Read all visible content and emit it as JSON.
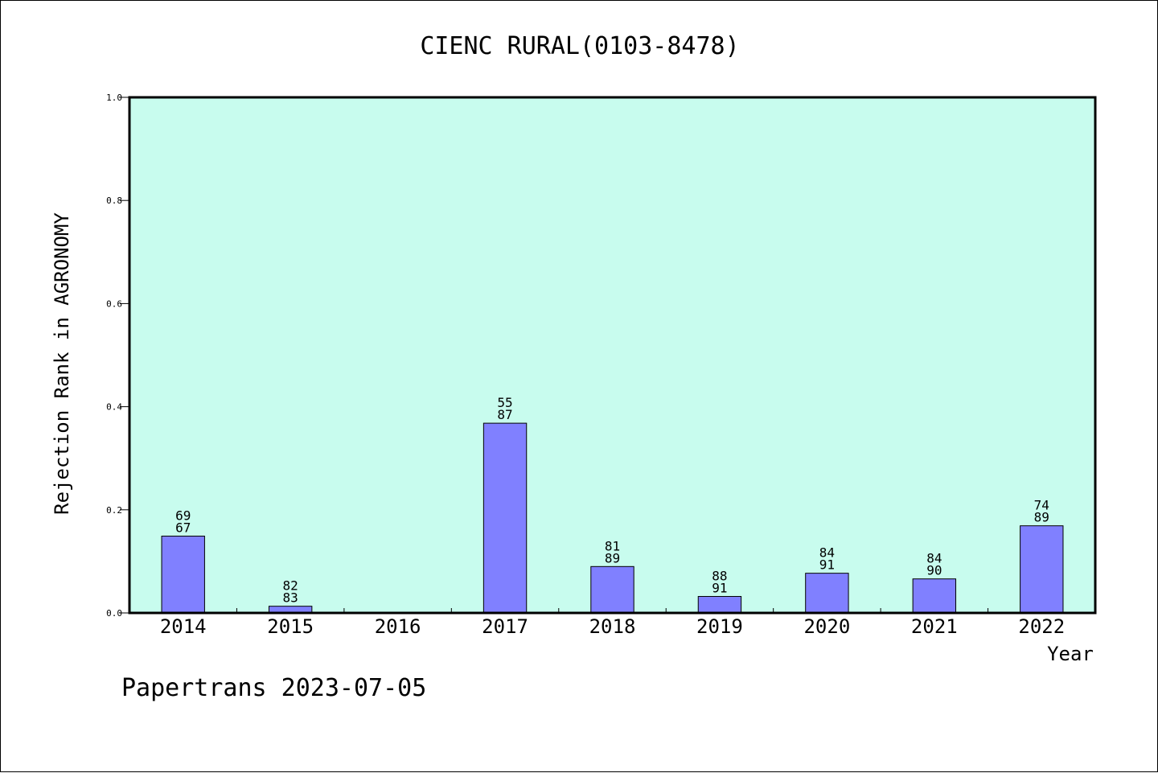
{
  "chart_data": {
    "type": "bar",
    "title": "CIENC RURAL(0103-8478)",
    "xlabel": "Year",
    "ylabel": "Rejection Rank in AGRONOMY",
    "categories": [
      "2014",
      "2015",
      "2016",
      "2017",
      "2018",
      "2019",
      "2020",
      "2021",
      "2022"
    ],
    "values": [
      0.149,
      0.013,
      0,
      0.368,
      0.09,
      0.032,
      0.077,
      0.066,
      0.169
    ],
    "bar_labels": [
      [
        "69",
        "67"
      ],
      [
        "82",
        "83"
      ],
      null,
      [
        "55",
        "87"
      ],
      [
        "81",
        "89"
      ],
      [
        "88",
        "91"
      ],
      [
        "84",
        "91"
      ],
      [
        "84",
        "90"
      ],
      [
        "74",
        "89"
      ]
    ],
    "ylim": [
      0,
      1.0
    ],
    "yticks": [
      "0.0",
      "0.2",
      "0.4",
      "0.6",
      "0.8",
      "1.0"
    ],
    "grid": false,
    "plot_background": "#c8fcee",
    "bar_color": "#8080ff",
    "bar_edge_color": "#000000"
  },
  "footer": {
    "text": "Papertrans 2023-07-05"
  }
}
